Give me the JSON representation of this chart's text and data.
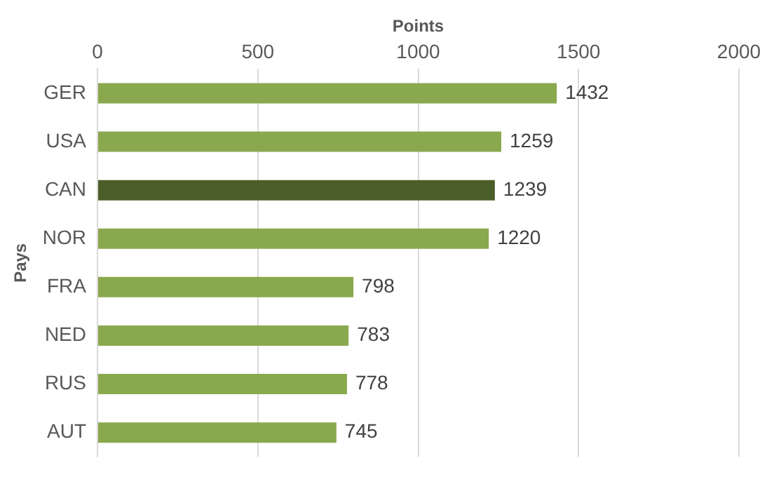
{
  "chart_data": {
    "type": "bar",
    "orientation": "horizontal",
    "xlabel": "Points",
    "ylabel": "Pays",
    "categories": [
      "GER",
      "USA",
      "CAN",
      "NOR",
      "FRA",
      "NED",
      "RUS",
      "AUT"
    ],
    "values": [
      1432,
      1259,
      1239,
      1220,
      798,
      783,
      778,
      745
    ],
    "colors": [
      "#8aa84e",
      "#8aa84e",
      "#4b5e29",
      "#8aa84e",
      "#8aa84e",
      "#8aa84e",
      "#8aa84e",
      "#8aa84e"
    ],
    "xlim": [
      0,
      2000
    ],
    "xticks": [
      0,
      500,
      1000,
      1500,
      2000
    ],
    "grid": "x",
    "data_labels": true,
    "legend": false
  }
}
